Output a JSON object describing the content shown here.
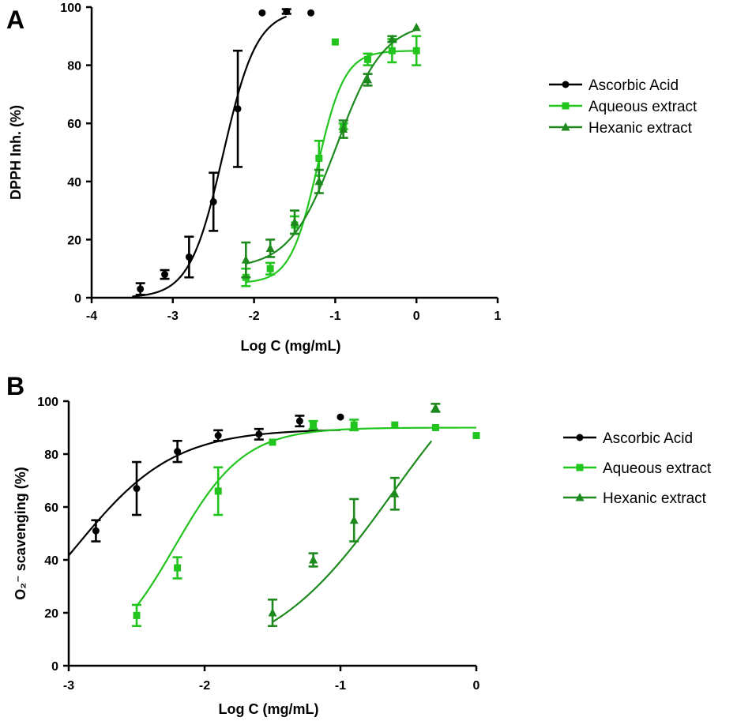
{
  "figure": {
    "panels": [
      "A",
      "B"
    ]
  },
  "colors": {
    "ascorbic": "#000000",
    "aqueous": "#22C51E",
    "hexanic": "#1E8A1E"
  },
  "chart_data": [
    {
      "panel_label": "A",
      "type": "scatter",
      "xlabel": "Log C (mg/mL)",
      "ylabel": "DPPH Inh. (%)",
      "xlim": [
        -4,
        1
      ],
      "ylim": [
        0,
        100
      ],
      "xticks": [
        -4,
        -3,
        -2,
        -1,
        0,
        1
      ],
      "yticks": [
        0,
        20,
        40,
        60,
        80,
        100
      ],
      "legend": {
        "placement": "right",
        "entries": [
          "Ascorbic Acid",
          "Aqueous extract",
          "Hexanic extract"
        ]
      },
      "series": [
        {
          "name": "Ascorbic Acid",
          "marker": "circle",
          "color_key": "ascorbic",
          "points": [
            {
              "x": -3.4,
              "y": 3,
              "err": 2
            },
            {
              "x": -3.1,
              "y": 8,
              "err": 1.5
            },
            {
              "x": -2.8,
              "y": 14,
              "err": 7
            },
            {
              "x": -2.5,
              "y": 33,
              "err": 10
            },
            {
              "x": -2.2,
              "y": 65,
              "err": 20
            },
            {
              "x": -1.9,
              "y": 98,
              "err": 0
            },
            {
              "x": -1.6,
              "y": 98.5,
              "err": 0.8
            },
            {
              "x": -1.3,
              "y": 98,
              "err": 0
            }
          ],
          "fit": {
            "bottom": 0,
            "top": 99,
            "logEC50": -2.38,
            "hill": 2.1,
            "x_range": [
              -3.5,
              -1.6
            ]
          }
        },
        {
          "name": "Aqueous extract",
          "marker": "square",
          "color_key": "aqueous",
          "points": [
            {
              "x": -2.1,
              "y": 7,
              "err": 3
            },
            {
              "x": -1.8,
              "y": 10,
              "err": 2
            },
            {
              "x": -1.5,
              "y": 25,
              "err": 3
            },
            {
              "x": -1.2,
              "y": 48,
              "err": 6
            },
            {
              "x": -0.9,
              "y": 59,
              "err": 1
            },
            {
              "x": -0.6,
              "y": 82,
              "err": 2
            },
            {
              "x": -1.0,
              "y": 88,
              "err": 0
            },
            {
              "x": -0.3,
              "y": 85,
              "err": 4
            },
            {
              "x": 0.0,
              "y": 85,
              "err": 5
            }
          ],
          "fit": {
            "bottom": 5,
            "top": 85,
            "logEC50": -1.22,
            "hill": 2.6,
            "x_range": [
              -2.1,
              0.0
            ]
          }
        },
        {
          "name": "Hexanic extract",
          "marker": "triangle",
          "color_key": "hexanic",
          "points": [
            {
              "x": -2.1,
              "y": 13,
              "err": 6
            },
            {
              "x": -1.8,
              "y": 17,
              "err": 3
            },
            {
              "x": -1.5,
              "y": 26,
              "err": 4
            },
            {
              "x": -1.2,
              "y": 40,
              "err": 4
            },
            {
              "x": -0.9,
              "y": 58,
              "err": 3
            },
            {
              "x": -0.6,
              "y": 75,
              "err": 2
            },
            {
              "x": -0.3,
              "y": 89,
              "err": 1
            },
            {
              "x": 0.0,
              "y": 93,
              "err": 0
            }
          ],
          "fit": {
            "bottom": 10,
            "top": 95,
            "logEC50": -0.98,
            "hill": 1.5,
            "x_range": [
              -2.1,
              0.0
            ]
          }
        }
      ]
    },
    {
      "panel_label": "B",
      "type": "scatter",
      "xlabel": "Log C (mg/mL)",
      "ylabel": "O₂⁻ scavenging (%)",
      "xlim": [
        -3,
        0
      ],
      "ylim": [
        0,
        100
      ],
      "xticks": [
        -3,
        -2,
        -1,
        0
      ],
      "yticks": [
        0,
        20,
        40,
        60,
        80,
        100
      ],
      "legend": {
        "placement": "right",
        "entries": [
          "Ascorbic Acid",
          "Aqueous extract",
          "Hexanic extract"
        ]
      },
      "series": [
        {
          "name": "Ascorbic Acid",
          "marker": "circle",
          "color_key": "ascorbic",
          "points": [
            {
              "x": -2.8,
              "y": 51,
              "err": 4
            },
            {
              "x": -2.5,
              "y": 67,
              "err": 10
            },
            {
              "x": -2.2,
              "y": 81,
              "err": 4
            },
            {
              "x": -1.9,
              "y": 87,
              "err": 2
            },
            {
              "x": -1.6,
              "y": 87.5,
              "err": 2
            },
            {
              "x": -1.3,
              "y": 92.5,
              "err": 2
            },
            {
              "x": -1.0,
              "y": 94,
              "err": 0
            }
          ],
          "fit": {
            "bottom": 0,
            "top": 89.5,
            "logEC50": -2.95,
            "hill": 1.2,
            "x_range": [
              -3.0,
              -1.0
            ]
          }
        },
        {
          "name": "Aqueous extract",
          "marker": "square",
          "color_key": "aqueous",
          "points": [
            {
              "x": -2.5,
              "y": 19,
              "err": 4
            },
            {
              "x": -2.2,
              "y": 37,
              "err": 4
            },
            {
              "x": -1.9,
              "y": 66,
              "err": 9
            },
            {
              "x": -1.5,
              "y": 84.5,
              "err": 0
            },
            {
              "x": -1.2,
              "y": 91,
              "err": 1.5
            },
            {
              "x": -0.9,
              "y": 91,
              "err": 2
            },
            {
              "x": -0.6,
              "y": 91,
              "err": 0
            },
            {
              "x": -0.3,
              "y": 90,
              "err": 0
            },
            {
              "x": 0.0,
              "y": 87,
              "err": 0
            }
          ],
          "fit": {
            "bottom": 0,
            "top": 90,
            "logEC50": -2.22,
            "hill": 1.7,
            "x_range": [
              -2.5,
              0.0
            ]
          }
        },
        {
          "name": "Hexanic extract",
          "marker": "triangle",
          "color_key": "hexanic",
          "points": [
            {
              "x": -1.5,
              "y": 20,
              "err": 5
            },
            {
              "x": -1.2,
              "y": 40,
              "err": 2.5
            },
            {
              "x": -0.9,
              "y": 55,
              "err": 8
            },
            {
              "x": -0.6,
              "y": 65,
              "err": 6
            },
            {
              "x": -0.3,
              "y": 97.5,
              "err": 1.5
            }
          ],
          "fit": {
            "bottom": 0,
            "top": 130,
            "logEC50": -0.62,
            "hill": 0.95,
            "x_range": [
              -1.5,
              -0.33
            ]
          }
        }
      ]
    }
  ]
}
